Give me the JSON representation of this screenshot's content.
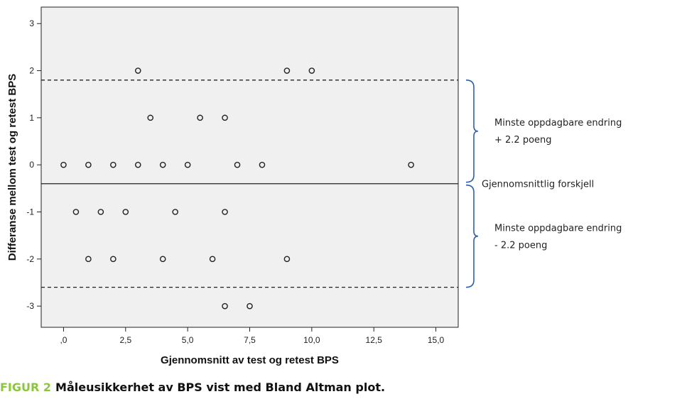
{
  "chart_data": {
    "type": "scatter",
    "xlabel": "Gjennomsnitt av test og retest BPS",
    "ylabel": "Differanse mellom test og retest BPS",
    "xlim": [
      -0.9,
      15.9
    ],
    "ylim": [
      -3.45,
      3.35
    ],
    "x_ticks": [
      {
        "value": 0,
        "label": ",0"
      },
      {
        "value": 2.5,
        "label": "2,5"
      },
      {
        "value": 5,
        "label": "5,0"
      },
      {
        "value": 7.5,
        "label": "7,5"
      },
      {
        "value": 10,
        "label": "10,0"
      },
      {
        "value": 12.5,
        "label": "12,5"
      },
      {
        "value": 15,
        "label": "15,0"
      }
    ],
    "y_ticks": [
      {
        "value": 3,
        "label": "3"
      },
      {
        "value": 2,
        "label": "2"
      },
      {
        "value": 1,
        "label": "1"
      },
      {
        "value": 0,
        "label": "0"
      },
      {
        "value": -1,
        "label": "-1"
      },
      {
        "value": -2,
        "label": "-2"
      },
      {
        "value": -3,
        "label": "-3"
      }
    ],
    "points": [
      {
        "x": 3,
        "y": 2
      },
      {
        "x": 9,
        "y": 2
      },
      {
        "x": 10,
        "y": 2
      },
      {
        "x": 3.5,
        "y": 1
      },
      {
        "x": 5.5,
        "y": 1
      },
      {
        "x": 6.5,
        "y": 1
      },
      {
        "x": 0,
        "y": 0
      },
      {
        "x": 1,
        "y": 0
      },
      {
        "x": 2,
        "y": 0
      },
      {
        "x": 3,
        "y": 0
      },
      {
        "x": 4,
        "y": 0
      },
      {
        "x": 5,
        "y": 0
      },
      {
        "x": 7,
        "y": 0
      },
      {
        "x": 8,
        "y": 0
      },
      {
        "x": 14,
        "y": 0
      },
      {
        "x": 0.5,
        "y": -1
      },
      {
        "x": 1.5,
        "y": -1
      },
      {
        "x": 2.5,
        "y": -1
      },
      {
        "x": 4.5,
        "y": -1
      },
      {
        "x": 6.5,
        "y": -1
      },
      {
        "x": 1,
        "y": -2
      },
      {
        "x": 2,
        "y": -2
      },
      {
        "x": 4,
        "y": -2
      },
      {
        "x": 6,
        "y": -2
      },
      {
        "x": 9,
        "y": -2
      },
      {
        "x": 6.5,
        "y": -3
      },
      {
        "x": 7.5,
        "y": -3
      }
    ],
    "mean_difference": -0.4,
    "upper_limit": 1.8,
    "lower_limit": -2.6,
    "grid": false,
    "background_color": "#f0f0f0",
    "bracket_color": "#2f5fa7",
    "annotations": {
      "upper_line1": "Minste oppdagbare endring",
      "upper_line2": "+ 2.2 poeng",
      "mean_label": "Gjennomsnittlig forskjell",
      "lower_line1": "Minste oppdagbare endring",
      "lower_line2": "- 2.2 poeng"
    }
  },
  "caption": {
    "prefix": "FIGUR 2",
    "text": "Måleusikkerhet av BPS vist med Bland Altman plot.",
    "prefix_color": "#8cc63f"
  }
}
